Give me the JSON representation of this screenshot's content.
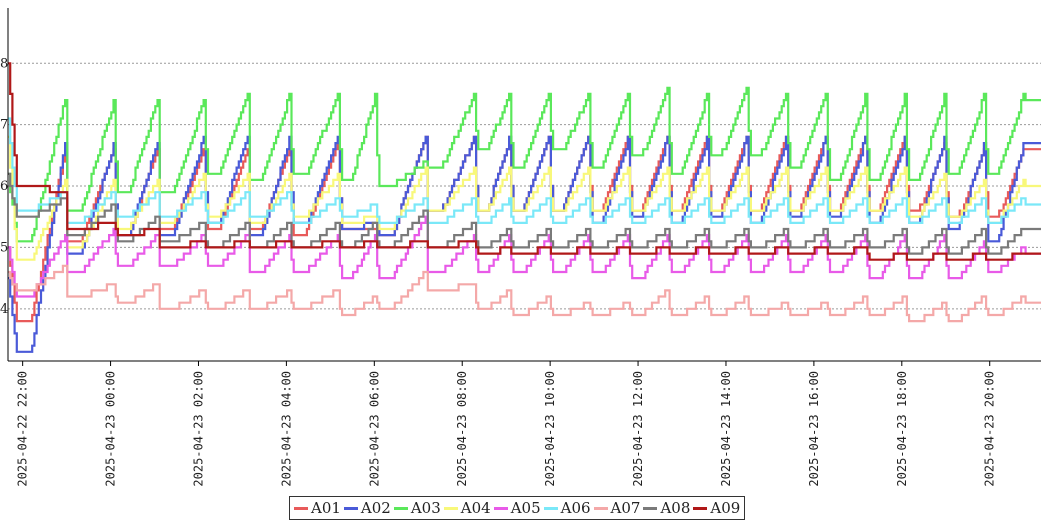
{
  "chart_data": {
    "type": "line",
    "xlim": [
      "2025-04-22 21:40",
      "2025-04-23 21:10"
    ],
    "ylim": [
      3.15,
      8.9
    ],
    "y_ticks": [
      "4",
      "5",
      "6",
      "7",
      "8"
    ],
    "x_ticks": [
      "2025-04-22 22:00",
      "2025-04-23 00:00",
      "2025-04-23 02:00",
      "2025-04-23 04:00",
      "2025-04-23 06:00",
      "2025-04-23 08:00",
      "2025-04-23 10:00",
      "2025-04-23 12:00",
      "2025-04-23 14:00",
      "2025-04-23 16:00",
      "2025-04-23 18:00",
      "2025-04-23 20:00"
    ],
    "grid": "horizontal dashed",
    "legend_position": "bottom-center",
    "line_style": "step",
    "cycle_starts": [
      "2025-04-22 21:52",
      "2025-04-22 23:01",
      "2025-04-23 00:08",
      "2025-04-23 01:07",
      "2025-04-23 02:11",
      "2025-04-23 03:10",
      "2025-04-23 04:08",
      "2025-04-23 05:14",
      "2025-04-23 06:05",
      "2025-04-23 07:13",
      "2025-04-23 08:20",
      "2025-04-23 09:08",
      "2025-04-23 10:02",
      "2025-04-23 10:56",
      "2025-04-23 11:50",
      "2025-04-23 12:44",
      "2025-04-23 13:38",
      "2025-04-23 14:32",
      "2025-04-23 15:26",
      "2025-04-23 16:20",
      "2025-04-23 17:14",
      "2025-04-23 18:08",
      "2025-04-23 19:02",
      "2025-04-23 19:56",
      "2025-04-23 20:50"
    ],
    "series": [
      {
        "name": "A01",
        "color": "#e85a5a",
        "start": 5.0,
        "mins": [
          3.8,
          5.1,
          5.2,
          5.3,
          5.3,
          5.3,
          5.2,
          5.3,
          5.2,
          5.6,
          5.6,
          5.6,
          5.6,
          5.6,
          5.6,
          5.6,
          5.6,
          5.6,
          5.6,
          5.6,
          5.6,
          5.6,
          5.5,
          5.5
        ],
        "peaks": [
          6.6,
          6.6,
          6.6,
          6.6,
          6.6,
          6.6,
          6.7,
          5.3,
          6.8,
          6.8,
          6.8,
          6.8,
          6.8,
          6.8,
          6.8,
          6.8,
          6.8,
          6.8,
          6.8,
          6.8,
          6.8,
          6.7,
          6.6,
          6.6
        ],
        "end": 6.6
      },
      {
        "name": "A02",
        "color": "#4a5ad8",
        "start": 4.5,
        "mins": [
          3.3,
          4.9,
          5.2,
          5.2,
          5.4,
          5.2,
          5.4,
          5.3,
          5.2,
          5.6,
          5.6,
          5.6,
          5.6,
          5.4,
          5.5,
          5.4,
          5.5,
          5.4,
          5.5,
          5.5,
          5.4,
          5.4,
          5.3,
          5.1
        ],
        "peaks": [
          6.7,
          6.7,
          6.7,
          6.8,
          6.8,
          6.8,
          6.8,
          5.4,
          6.8,
          6.8,
          6.8,
          6.8,
          6.8,
          6.8,
          6.8,
          6.8,
          6.8,
          6.8,
          6.8,
          6.8,
          6.8,
          6.8,
          6.7,
          6.7
        ],
        "end": 6.7
      },
      {
        "name": "A03",
        "color": "#5ae85a",
        "start": 6.2,
        "mins": [
          5.1,
          5.6,
          5.9,
          5.9,
          6.2,
          6.1,
          6.2,
          6.1,
          6.0,
          6.3,
          6.6,
          6.3,
          6.6,
          6.3,
          6.5,
          6.2,
          6.5,
          6.5,
          6.3,
          6.1,
          6.1,
          6.1,
          6.2,
          6.2
        ],
        "peaks": [
          7.4,
          7.4,
          7.4,
          7.4,
          7.5,
          7.5,
          7.5,
          7.5,
          6.4,
          7.5,
          7.5,
          7.5,
          7.5,
          7.5,
          7.6,
          7.5,
          7.6,
          7.5,
          7.5,
          7.5,
          7.5,
          7.5,
          7.5,
          7.5
        ],
        "end": 7.4
      },
      {
        "name": "A04",
        "color": "#f8f87a",
        "start": 6.8,
        "mins": [
          4.8,
          5.0,
          5.3,
          5.4,
          5.5,
          5.4,
          5.5,
          5.4,
          5.3,
          5.6,
          5.6,
          5.6,
          5.6,
          5.6,
          5.6,
          5.6,
          5.6,
          5.6,
          5.6,
          5.6,
          5.6,
          5.5,
          5.5,
          5.4
        ],
        "peaks": [
          6.1,
          6.1,
          6.1,
          6.2,
          6.2,
          6.2,
          6.2,
          5.5,
          6.3,
          6.3,
          6.3,
          6.3,
          6.3,
          6.3,
          6.3,
          6.3,
          6.3,
          6.3,
          6.3,
          6.3,
          6.3,
          6.2,
          6.1,
          6.1
        ],
        "end": 6.0
      },
      {
        "name": "A05",
        "color": "#e85ae8",
        "start": 5.0,
        "mins": [
          4.2,
          4.6,
          4.7,
          4.7,
          4.7,
          4.6,
          4.6,
          4.5,
          4.5,
          4.6,
          4.6,
          4.6,
          4.6,
          4.6,
          4.5,
          4.6,
          4.6,
          4.6,
          4.6,
          4.6,
          4.5,
          4.5,
          4.5,
          4.6
        ],
        "peaks": [
          5.2,
          5.3,
          5.2,
          5.2,
          5.2,
          5.2,
          5.2,
          5.2,
          5.5,
          5.2,
          5.2,
          5.2,
          5.2,
          5.2,
          5.2,
          5.2,
          5.2,
          5.2,
          5.2,
          5.2,
          5.2,
          5.2,
          5.1,
          5.0
        ],
        "end": 4.9
      },
      {
        "name": "A06",
        "color": "#7ae8f8",
        "start": 7.1,
        "mins": [
          5.6,
          5.4,
          5.5,
          5.5,
          5.4,
          5.5,
          5.4,
          5.5,
          5.4,
          5.4,
          5.4,
          5.4,
          5.4,
          5.4,
          5.4,
          5.4,
          5.4,
          5.4,
          5.4,
          5.4,
          5.4,
          5.4,
          5.4,
          5.4
        ],
        "peaks": [
          5.9,
          5.9,
          5.9,
          5.9,
          5.9,
          5.9,
          5.8,
          5.7,
          5.8,
          5.8,
          5.8,
          5.8,
          5.8,
          5.8,
          5.8,
          5.8,
          5.8,
          5.8,
          5.8,
          5.8,
          5.8,
          5.8,
          5.8,
          5.8
        ],
        "end": 5.7
      },
      {
        "name": "A07",
        "color": "#f4a8a8",
        "start": 4.6,
        "mins": [
          4.3,
          4.2,
          4.1,
          4.0,
          4.0,
          4.0,
          4.0,
          3.9,
          4.0,
          4.3,
          4.0,
          3.9,
          3.9,
          3.9,
          3.9,
          3.9,
          3.9,
          3.9,
          3.9,
          3.9,
          3.9,
          3.8,
          3.8,
          3.9
        ],
        "peaks": [
          4.7,
          4.4,
          4.4,
          4.3,
          4.3,
          4.3,
          4.3,
          4.2,
          4.6,
          4.4,
          4.3,
          4.2,
          4.1,
          4.1,
          4.3,
          4.2,
          4.2,
          4.1,
          4.1,
          4.2,
          4.2,
          4.1,
          4.2,
          4.2
        ],
        "end": 4.1
      },
      {
        "name": "A08",
        "color": "#7a7a7a",
        "start": 6.2,
        "mins": [
          5.5,
          5.2,
          5.1,
          5.1,
          5.0,
          5.0,
          5.0,
          5.0,
          5.0,
          5.0,
          5.0,
          5.0,
          5.0,
          5.0,
          5.0,
          5.0,
          5.0,
          5.0,
          5.0,
          5.0,
          5.0,
          4.9,
          4.9,
          4.9
        ],
        "peaks": [
          5.8,
          5.7,
          5.5,
          5.4,
          5.4,
          5.4,
          5.4,
          5.4,
          5.6,
          5.4,
          5.3,
          5.3,
          5.3,
          5.3,
          5.3,
          5.3,
          5.3,
          5.3,
          5.3,
          5.3,
          5.3,
          5.3,
          5.3,
          5.3
        ],
        "end": 5.3
      },
      {
        "name": "A09",
        "color": "#b01818",
        "start": 8.0,
        "mins": [
          6.0,
          5.3,
          5.2,
          5.0,
          5.0,
          5.0,
          5.0,
          5.0,
          5.0,
          5.0,
          4.9,
          4.9,
          4.9,
          4.9,
          4.9,
          4.9,
          4.9,
          4.9,
          4.9,
          4.9,
          4.8,
          4.8,
          4.8,
          4.8
        ],
        "peaks": [
          5.9,
          5.4,
          5.3,
          5.1,
          5.1,
          5.1,
          5.1,
          5.1,
          5.1,
          5.1,
          5.0,
          5.0,
          5.0,
          5.0,
          5.0,
          5.0,
          5.0,
          5.0,
          5.0,
          5.0,
          4.9,
          4.9,
          4.9,
          4.9
        ],
        "end": 4.9
      }
    ]
  }
}
